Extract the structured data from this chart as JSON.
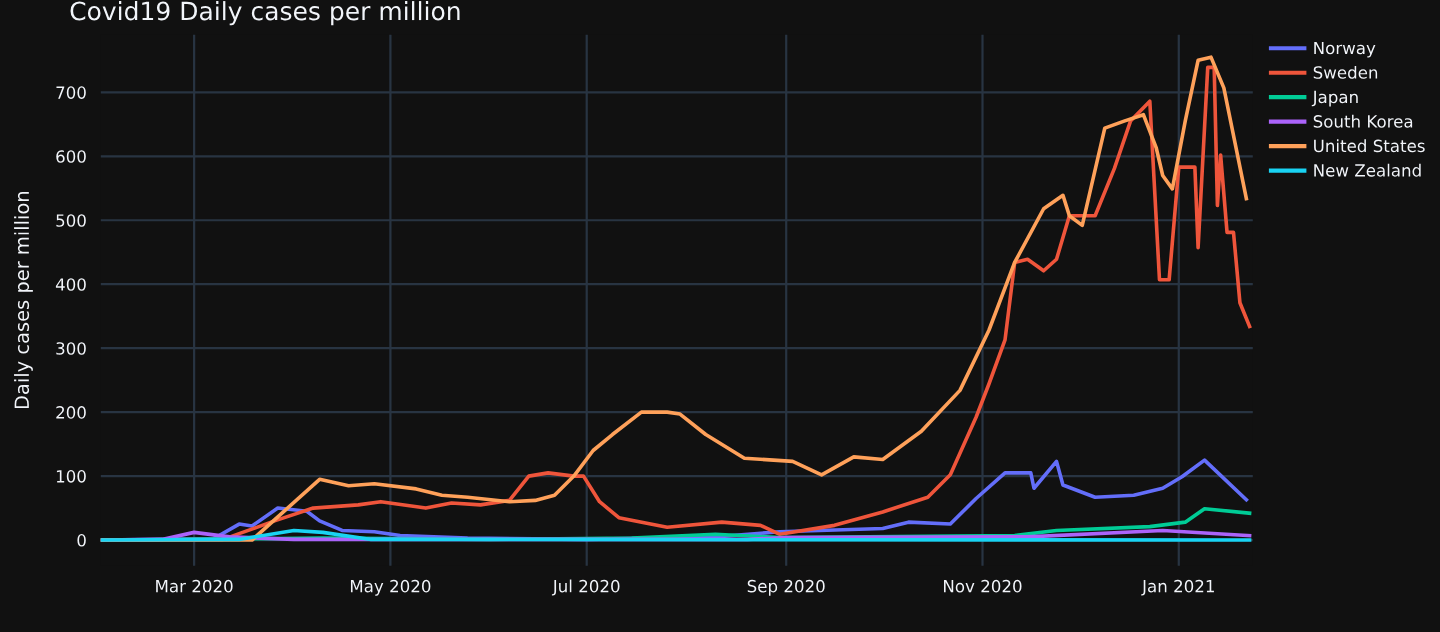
{
  "chart_data": {
    "type": "line",
    "title": "Covid19 Daily cases per million",
    "ylabel": "Daily cases per million",
    "xlim": [
      "2020-02-01",
      "2021-01-24"
    ],
    "ylim": [
      -40,
      790
    ],
    "yticks": [
      0,
      100,
      200,
      300,
      400,
      500,
      600,
      700
    ],
    "xticks": [
      {
        "value": "2020-03-01",
        "label": "Mar 2020"
      },
      {
        "value": "2020-05-01",
        "label": "May 2020"
      },
      {
        "value": "2020-07-01",
        "label": "Jul 2020"
      },
      {
        "value": "2020-09-01",
        "label": "Sep 2020"
      },
      {
        "value": "2020-11-01",
        "label": "Nov 2020"
      },
      {
        "value": "2021-01-01",
        "label": "Jan 2021"
      }
    ],
    "grid": true,
    "legend": "top right",
    "marker": "none",
    "line_style": "solid",
    "series": [
      {
        "name": "Norway",
        "color": "#636efa",
        "x": [
          "2020-02-01",
          "2020-03-07",
          "2020-03-15",
          "2020-03-19",
          "2020-03-27",
          "2020-04-05",
          "2020-04-09",
          "2020-04-16",
          "2020-04-26",
          "2020-05-04",
          "2020-05-25",
          "2020-07-01",
          "2020-08-10",
          "2020-08-30",
          "2020-10-01",
          "2020-10-09",
          "2020-10-22",
          "2020-10-30",
          "2020-11-08",
          "2020-11-16",
          "2020-11-17",
          "2020-11-24",
          "2020-11-26",
          "2020-12-06",
          "2020-12-18",
          "2020-12-27",
          "2021-01-02",
          "2021-01-09",
          "2021-01-22"
        ],
        "values": [
          0,
          2,
          25,
          22,
          50,
          45,
          30,
          15,
          13,
          7,
          3,
          1,
          5,
          13,
          18,
          28,
          25,
          65,
          105,
          105,
          81,
          123,
          86,
          67,
          70,
          81,
          99,
          125,
          63
        ]
      },
      {
        "name": "Sweden",
        "color": "#ef553b",
        "x": [
          "2020-02-01",
          "2020-03-10",
          "2020-03-15",
          "2020-03-26",
          "2020-04-07",
          "2020-04-21",
          "2020-04-28",
          "2020-05-12",
          "2020-05-20",
          "2020-05-29",
          "2020-06-07",
          "2020-06-13",
          "2020-06-19",
          "2020-06-27",
          "2020-06-30",
          "2020-07-05",
          "2020-07-11",
          "2020-07-26",
          "2020-08-12",
          "2020-08-24",
          "2020-08-30",
          "2020-09-16",
          "2020-10-01",
          "2020-10-15",
          "2020-10-22",
          "2020-10-30",
          "2020-11-03",
          "2020-11-08",
          "2020-11-11",
          "2020-11-15",
          "2020-11-20",
          "2020-11-24",
          "2020-11-28",
          "2020-12-06",
          "2020-12-12",
          "2020-12-17",
          "2020-12-23",
          "2020-12-26",
          "2020-12-29",
          "2021-01-01",
          "2021-01-06",
          "2021-01-07",
          "2021-01-10",
          "2021-01-12",
          "2021-01-13",
          "2021-01-14",
          "2021-01-16",
          "2021-01-18",
          "2021-01-20",
          "2021-01-23"
        ],
        "values": [
          0,
          1,
          10,
          30,
          50,
          55,
          60,
          50,
          58,
          55,
          62,
          100,
          105,
          100,
          100,
          60,
          35,
          20,
          28,
          23,
          9,
          23,
          44,
          67,
          102,
          192,
          244,
          313,
          434,
          439,
          421,
          439,
          507,
          507,
          581,
          655,
          686,
          407,
          407,
          583,
          583,
          457,
          739,
          739,
          523,
          602,
          481,
          481,
          371,
          334
        ]
      },
      {
        "name": "Japan",
        "color": "#00cc96",
        "x": [
          "2020-02-01",
          "2020-04-10",
          "2020-06-01",
          "2020-07-15",
          "2020-08-10",
          "2020-08-30",
          "2020-11-11",
          "2020-11-24",
          "2020-12-23",
          "2021-01-03",
          "2021-01-09",
          "2021-01-23"
        ],
        "values": [
          0,
          3,
          1,
          3,
          9,
          4,
          7,
          15,
          21,
          28,
          49,
          42
        ]
      },
      {
        "name": "South Korea",
        "color": "#ab63fa",
        "x": [
          "2020-02-01",
          "2020-02-20",
          "2020-03-01",
          "2020-03-12",
          "2020-04-01",
          "2020-08-20",
          "2020-09-01",
          "2020-11-15",
          "2020-12-27",
          "2021-01-23"
        ],
        "values": [
          0,
          1,
          12,
          5,
          1,
          1,
          4,
          5,
          15,
          7
        ]
      },
      {
        "name": "United States",
        "color": "#ffa15a",
        "x": [
          "2020-02-01",
          "2020-03-19",
          "2020-04-09",
          "2020-04-18",
          "2020-04-26",
          "2020-05-09",
          "2020-05-17",
          "2020-05-25",
          "2020-06-07",
          "2020-06-15",
          "2020-06-21",
          "2020-06-27",
          "2020-07-03",
          "2020-07-09",
          "2020-07-18",
          "2020-07-26",
          "2020-07-30",
          "2020-08-07",
          "2020-08-19",
          "2020-09-03",
          "2020-09-12",
          "2020-09-22",
          "2020-10-01",
          "2020-10-13",
          "2020-10-25",
          "2020-11-03",
          "2020-11-11",
          "2020-11-20",
          "2020-11-26",
          "2020-11-28",
          "2020-12-02",
          "2020-12-09",
          "2020-12-15",
          "2020-12-21",
          "2020-12-25",
          "2020-12-27",
          "2020-12-30",
          "2021-01-03",
          "2021-01-07",
          "2021-01-11",
          "2021-01-15",
          "2021-01-22"
        ],
        "values": [
          0,
          0,
          95,
          85,
          88,
          80,
          70,
          67,
          60,
          62,
          70,
          100,
          140,
          165,
          200,
          200,
          197,
          165,
          128,
          123,
          102,
          130,
          126,
          170,
          234,
          328,
          434,
          518,
          539,
          507,
          492,
          644,
          655,
          665,
          613,
          570,
          549,
          655,
          750,
          755,
          707,
          534
        ]
      },
      {
        "name": "New Zealand",
        "color": "#19d3f3",
        "x": [
          "2020-02-01",
          "2020-03-15",
          "2020-04-01",
          "2020-04-10",
          "2020-04-25",
          "2021-01-23"
        ],
        "values": [
          0,
          1,
          15,
          12,
          1,
          0
        ]
      }
    ]
  }
}
